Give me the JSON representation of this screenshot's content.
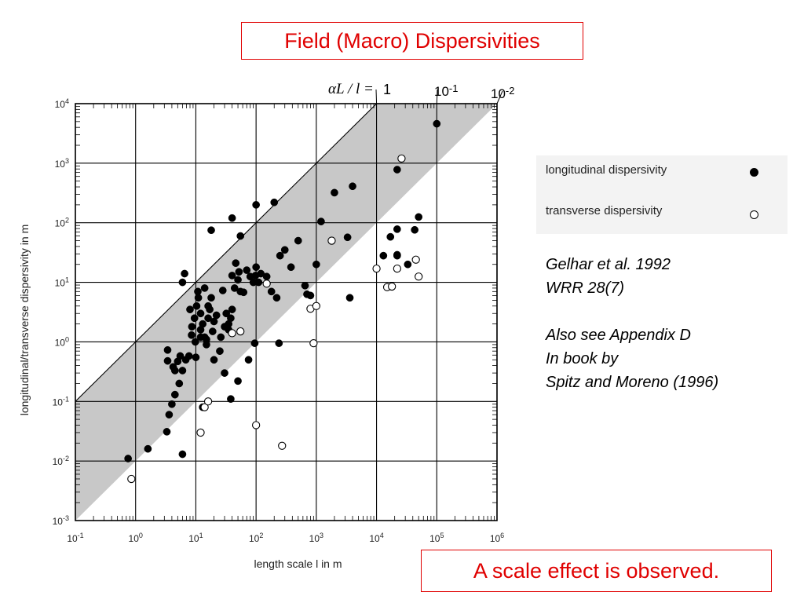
{
  "title": "Field (Macro) Dispersivities",
  "conclusion": "A scale effect is observed.",
  "legend": {
    "longitudinal": "longitudinal dispersivity",
    "transverse": "transverse dispersivity"
  },
  "citation": {
    "line1": "Gelhar et al. 1992",
    "line2": "WRR 28(7)",
    "line3": "Also see Appendix D",
    "line4": "In book by",
    "line5": "Spitz and Moreno (1996)"
  },
  "chart_data": {
    "type": "scatter",
    "xlabel": "length scale l in m",
    "ylabel": "longitudinal/transverse dispersivity in m",
    "xscale": "log",
    "yscale": "log",
    "xlim": [
      0.1,
      1000000
    ],
    "ylim": [
      0.001,
      10000
    ],
    "x_tick_labels": [
      "10-1",
      "100",
      "101",
      "102",
      "103",
      "104",
      "105",
      "106"
    ],
    "y_tick_labels": [
      "10-3",
      "10-2",
      "10-1",
      "100",
      "101",
      "102",
      "103",
      "104"
    ],
    "grid": true,
    "ratio_lines_label": "αL / l =",
    "ratio_lines": [
      {
        "label": "1",
        "ratio": 1
      },
      {
        "label": "10-1",
        "ratio": 0.1
      },
      {
        "label": "10-2",
        "ratio": 0.01
      }
    ],
    "shaded_band_ratio": [
      0.01,
      1
    ],
    "series": [
      {
        "name": "longitudinal dispersivity",
        "marker": "filled-circle",
        "points": [
          [
            0.75,
            0.011
          ],
          [
            1.6,
            0.016
          ],
          [
            3.3,
            0.031
          ],
          [
            6,
            0.013
          ],
          [
            3.6,
            0.06
          ],
          [
            4,
            0.09
          ],
          [
            4.5,
            0.13
          ],
          [
            5.3,
            0.2
          ],
          [
            6,
            0.33
          ],
          [
            4.2,
            0.38
          ],
          [
            3.4,
            0.48
          ],
          [
            3.4,
            0.73
          ],
          [
            4.5,
            0.33
          ],
          [
            5,
            0.47
          ],
          [
            5.5,
            0.58
          ],
          [
            6.8,
            0.5
          ],
          [
            7.7,
            0.58
          ],
          [
            10,
            0.55
          ],
          [
            8.5,
            1.3
          ],
          [
            9.8,
            1.0
          ],
          [
            8.6,
            1.8
          ],
          [
            9.5,
            2.5
          ],
          [
            10.3,
            4
          ],
          [
            11,
            5.5
          ],
          [
            10.8,
            7
          ],
          [
            12,
            3
          ],
          [
            13,
            2
          ],
          [
            14,
            1.2
          ],
          [
            15,
            0.9
          ],
          [
            16,
            2.5
          ],
          [
            17,
            3.5
          ],
          [
            19,
            1.5
          ],
          [
            20,
            2.2
          ],
          [
            22,
            2.8
          ],
          [
            25,
            0.7
          ],
          [
            26,
            1.2
          ],
          [
            30,
            1.8
          ],
          [
            32,
            3
          ],
          [
            35,
            2
          ],
          [
            38,
            2.5
          ],
          [
            40,
            3.5
          ],
          [
            44,
            8
          ],
          [
            46,
            21
          ],
          [
            50,
            11
          ],
          [
            52,
            15
          ],
          [
            55,
            7
          ],
          [
            62,
            6.8
          ],
          [
            80,
            12.5
          ],
          [
            90,
            10
          ],
          [
            98,
            13
          ],
          [
            100,
            18
          ],
          [
            110,
            10
          ],
          [
            120,
            14
          ],
          [
            150,
            12.5
          ],
          [
            180,
            7
          ],
          [
            220,
            5.5
          ],
          [
            250,
            28
          ],
          [
            300,
            35
          ],
          [
            380,
            18
          ],
          [
            500,
            50
          ],
          [
            650,
            8.8
          ],
          [
            700,
            6.3
          ],
          [
            800,
            6
          ],
          [
            1000,
            20
          ],
          [
            1200,
            105
          ],
          [
            2000,
            320
          ],
          [
            3300,
            57
          ],
          [
            3600,
            5.5
          ],
          [
            4000,
            410
          ],
          [
            13000,
            28
          ],
          [
            17000,
            58
          ],
          [
            22000,
            29
          ],
          [
            22000,
            28
          ],
          [
            22000,
            780
          ],
          [
            22000,
            78
          ],
          [
            33000,
            20
          ],
          [
            43000,
            76
          ],
          [
            50000,
            125
          ],
          [
            100000,
            4600
          ],
          [
            6,
            10
          ],
          [
            6.5,
            14
          ],
          [
            40,
            120
          ],
          [
            18,
            75
          ],
          [
            100,
            200
          ],
          [
            200,
            220
          ],
          [
            13,
            0.08
          ],
          [
            38,
            0.11
          ],
          [
            50,
            0.22
          ],
          [
            75,
            0.5
          ],
          [
            95,
            0.95
          ],
          [
            35,
            1.6
          ],
          [
            30,
            0.3
          ],
          [
            20,
            0.5
          ],
          [
            12,
            1.6
          ],
          [
            28,
            7.3
          ],
          [
            40,
            13
          ],
          [
            55,
            60
          ],
          [
            14,
            8
          ],
          [
            16,
            4
          ],
          [
            18,
            5.5
          ],
          [
            70,
            16
          ],
          [
            240,
            0.95
          ],
          [
            8,
            3.5
          ],
          [
            12,
            1.2
          ],
          [
            15,
            1.1
          ]
        ]
      },
      {
        "name": "transverse dispersivity",
        "marker": "open-circle",
        "points": [
          [
            0.85,
            0.005
          ],
          [
            12,
            0.03
          ],
          [
            14,
            0.08
          ],
          [
            16,
            0.1
          ],
          [
            100,
            0.04
          ],
          [
            270,
            0.018
          ],
          [
            40,
            1.4
          ],
          [
            55,
            1.5
          ],
          [
            150,
            9.5
          ],
          [
            800,
            3.6
          ],
          [
            900,
            0.95
          ],
          [
            1000,
            4
          ],
          [
            1800,
            50
          ],
          [
            10000,
            17
          ],
          [
            15000,
            8.3
          ],
          [
            18000,
            8.5
          ],
          [
            22000,
            17
          ],
          [
            26000,
            1200
          ],
          [
            45000,
            24
          ],
          [
            50000,
            12.5
          ]
        ]
      }
    ]
  }
}
